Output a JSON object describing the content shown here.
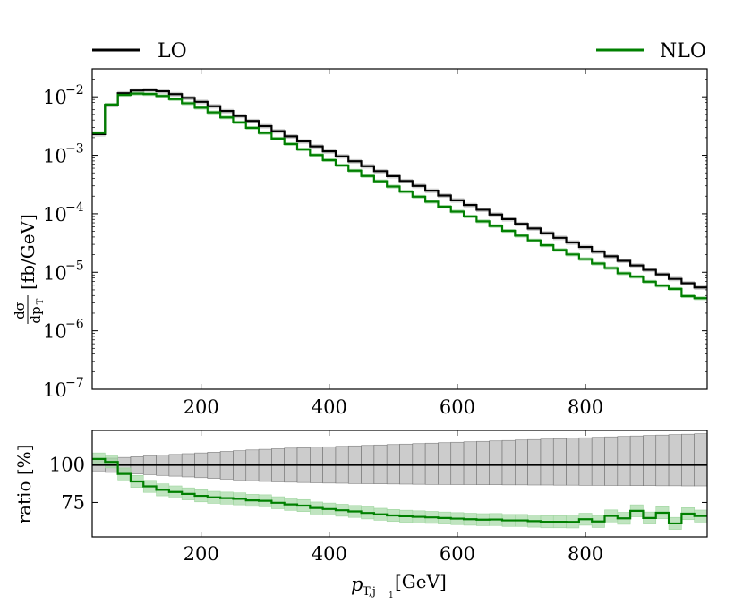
{
  "chart_data": [
    {
      "type": "line",
      "title": "",
      "xlabel": "",
      "ylabel": "dσ/dp_T [fb/GeV]",
      "ylabel_parts": {
        "num": "dσ",
        "den": "dp",
        "den_sub": "T",
        "unit": "[fb/GeV]"
      },
      "yscale": "log",
      "xlim": [
        30,
        990
      ],
      "ylim": [
        1e-07,
        0.03
      ],
      "x_ticks": [
        "200",
        "400",
        "600",
        "800"
      ],
      "y_ticks": [
        {
          "base": "10",
          "exp": "−7",
          "value": 1e-07
        },
        {
          "base": "10",
          "exp": "−6",
          "value": 1e-06
        },
        {
          "base": "10",
          "exp": "−5",
          "value": 1e-05
        },
        {
          "base": "10",
          "exp": "−4",
          "value": 0.0001
        },
        {
          "base": "10",
          "exp": "−3",
          "value": 0.001
        },
        {
          "base": "10",
          "exp": "−2",
          "value": 0.01
        }
      ],
      "legend": {
        "placement": "top",
        "entries": [
          {
            "label": "LO",
            "color": "#000000"
          },
          {
            "label": "NLO",
            "color": "#008000"
          }
        ]
      },
      "bin_edges": [
        30,
        50,
        70,
        90,
        110,
        130,
        150,
        170,
        190,
        210,
        230,
        250,
        270,
        290,
        310,
        330,
        350,
        370,
        390,
        410,
        430,
        450,
        470,
        490,
        510,
        530,
        550,
        570,
        590,
        610,
        630,
        650,
        670,
        690,
        710,
        730,
        750,
        770,
        790,
        810,
        830,
        850,
        870,
        890,
        910,
        930,
        950,
        970,
        990
      ],
      "series": [
        {
          "name": "LO",
          "color": "#000000",
          "band_color": "#bbbbbb",
          "rel_band": 0.15,
          "values": [
            0.0023,
            0.0072,
            0.0115,
            0.0128,
            0.013,
            0.0124,
            0.0111,
            0.0096,
            0.0082,
            0.0069,
            0.0057,
            0.0047,
            0.00385,
            0.00315,
            0.00258,
            0.00211,
            0.00173,
            0.00142,
            0.00117,
            0.00096,
            0.00079,
            0.00065,
            0.000535,
            0.00044,
            0.000363,
            0.0003,
            0.000248,
            0.000205,
            0.00017,
            0.000141,
            0.000117,
            9.7e-05,
            8.1e-05,
            6.7e-05,
            5.6e-05,
            4.65e-05,
            3.88e-05,
            3.23e-05,
            2.7e-05,
            2.25e-05,
            1.88e-05,
            1.57e-05,
            1.31e-05,
            1.1e-05,
            9.2e-06,
            7.7e-06,
            6.5e-06,
            5.5e-06
          ]
        },
        {
          "name": "NLO",
          "color": "#008000",
          "band_color": "#9ed69e",
          "rel_band": 0.12,
          "values": [
            0.0024,
            0.00735,
            0.0108,
            0.01135,
            0.01114,
            0.01034,
            0.00911,
            0.00775,
            0.00651,
            0.00541,
            0.00444,
            0.00364,
            0.00294,
            0.0024,
            0.00193,
            0.00156,
            0.00126,
            0.00101,
            0.000826,
            0.00067,
            0.000545,
            0.000442,
            0.000359,
            0.000292,
            0.000239,
            0.000196,
            0.000161,
            0.000132,
            0.000109,
            8.99e-05,
            7.43e-05,
            6.17e-05,
            5.1e-05,
            4.22e-05,
            3.5e-05,
            2.89e-05,
            2.41e-05,
            2.02e-05,
            1.68e-05,
            1.41e-05,
            1.18e-05,
            9.6e-06,
            8.4e-06,
            6.9e-06,
            5.9e-06,
            5.2e-06,
            3.9e-06,
            3.6e-06
          ]
        }
      ]
    },
    {
      "type": "line",
      "title": "",
      "xlabel": "p_T,j1 [GeV]",
      "xlabel_parts": {
        "main": "p",
        "sub": "T,j",
        "subsub": "1",
        "unit": "[GeV]"
      },
      "ylabel": "ratio [%]",
      "xlim": [
        30,
        990
      ],
      "ylim": [
        52,
        123
      ],
      "x_ticks": [
        "200",
        "400",
        "600",
        "800"
      ],
      "y_ticks": [
        "75",
        "100"
      ],
      "bin_edges": [
        30,
        50,
        70,
        90,
        110,
        130,
        150,
        170,
        190,
        210,
        230,
        250,
        270,
        290,
        310,
        330,
        350,
        370,
        390,
        410,
        430,
        450,
        470,
        490,
        510,
        530,
        550,
        570,
        590,
        610,
        630,
        650,
        670,
        690,
        710,
        730,
        750,
        770,
        790,
        810,
        830,
        850,
        870,
        890,
        910,
        930,
        950,
        970,
        990
      ],
      "series": [
        {
          "name": "LO",
          "color": "#000000",
          "band_color": "#bbbbbb",
          "values": [
            100,
            100,
            100,
            100,
            100,
            100,
            100,
            100,
            100,
            100,
            100,
            100,
            100,
            100,
            100,
            100,
            100,
            100,
            100,
            100,
            100,
            100,
            100,
            100,
            100,
            100,
            100,
            100,
            100,
            100,
            100,
            100,
            100,
            100,
            100,
            100,
            100,
            100,
            100,
            100,
            100,
            100,
            100,
            100,
            100,
            100,
            100,
            100
          ],
          "band_low": [
            96,
            95,
            94.5,
            94,
            93.5,
            93,
            92.5,
            92,
            91.5,
            91,
            90.5,
            90,
            89.5,
            89,
            88.7,
            88.5,
            88.3,
            88.1,
            87.9,
            87.8,
            87.6,
            87.5,
            87.4,
            87.3,
            87.2,
            87.1,
            87,
            87,
            86.9,
            86.9,
            86.8,
            86.8,
            86.7,
            86.7,
            86.6,
            86.6,
            86.5,
            86.5,
            86.4,
            86.4,
            86.3,
            86.3,
            86.2,
            86.2,
            86.1,
            86.1,
            86,
            86
          ],
          "band_high": [
            104,
            104.5,
            105,
            105.5,
            106,
            106.5,
            107,
            107.5,
            108,
            108.5,
            109,
            109.5,
            110,
            110.4,
            110.8,
            111.2,
            111.5,
            111.8,
            112.1,
            112.4,
            112.7,
            113,
            113.3,
            113.6,
            113.9,
            114.2,
            114.5,
            114.8,
            115.1,
            115.4,
            115.7,
            116,
            116.3,
            116.6,
            116.9,
            117.2,
            117.5,
            117.8,
            118.1,
            118.4,
            118.7,
            119,
            119.3,
            119.6,
            119.9,
            120.2,
            120.5,
            120.8
          ]
        },
        {
          "name": "NLO",
          "color": "#008000",
          "band_color": "#9ed69e",
          "values": [
            104,
            102,
            94,
            89,
            85.7,
            83.4,
            82,
            80.7,
            79.4,
            78.4,
            77.9,
            77.4,
            76.4,
            76.1,
            74.8,
            73.7,
            72.9,
            71.3,
            70.6,
            69.8,
            69,
            68,
            67.1,
            66.3,
            65.8,
            65.4,
            65,
            64.6,
            64.2,
            63.8,
            63.5,
            63.6,
            63,
            63,
            62.5,
            62.1,
            62.1,
            62,
            63.8,
            62.3,
            66,
            64.4,
            69.4,
            64.6,
            68.1,
            61,
            67.5,
            65.9
          ],
          "rel_band": 4
        }
      ]
    }
  ]
}
